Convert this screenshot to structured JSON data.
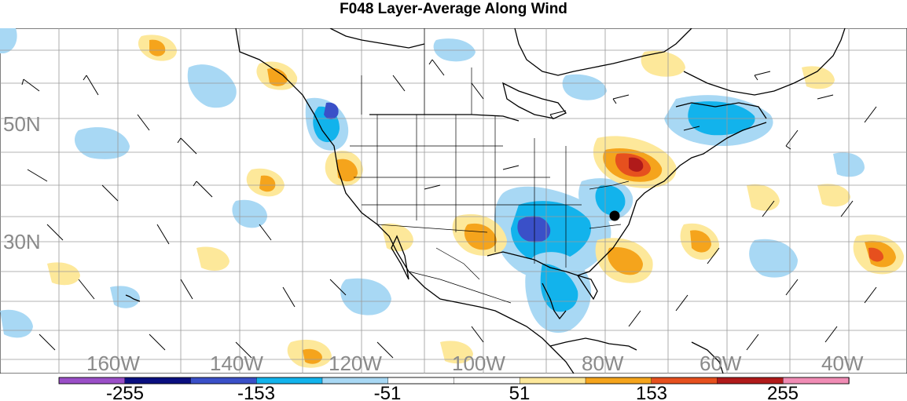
{
  "title": "F048 Layer-Average Along Wind",
  "map": {
    "lat_labels": [
      "50N",
      "30N"
    ],
    "lon_labels": [
      "160W",
      "140W",
      "120W",
      "100W",
      "80W",
      "60W",
      "40W"
    ],
    "grid_color": "#9a9a9a",
    "coast_color": "#000000",
    "marker": "location-dot"
  },
  "colorbar": {
    "labels": [
      "-255",
      "-153",
      "-51",
      "51",
      "153",
      "255"
    ],
    "colors": [
      "#9a4fc7",
      "#0a0f80",
      "#3a50c8",
      "#12b3ec",
      "#a8d8f4",
      "#ffffff",
      "#ffffff",
      "#fde89a",
      "#f5a41c",
      "#e6501e",
      "#b01a1a",
      "#f08cb4"
    ]
  }
}
